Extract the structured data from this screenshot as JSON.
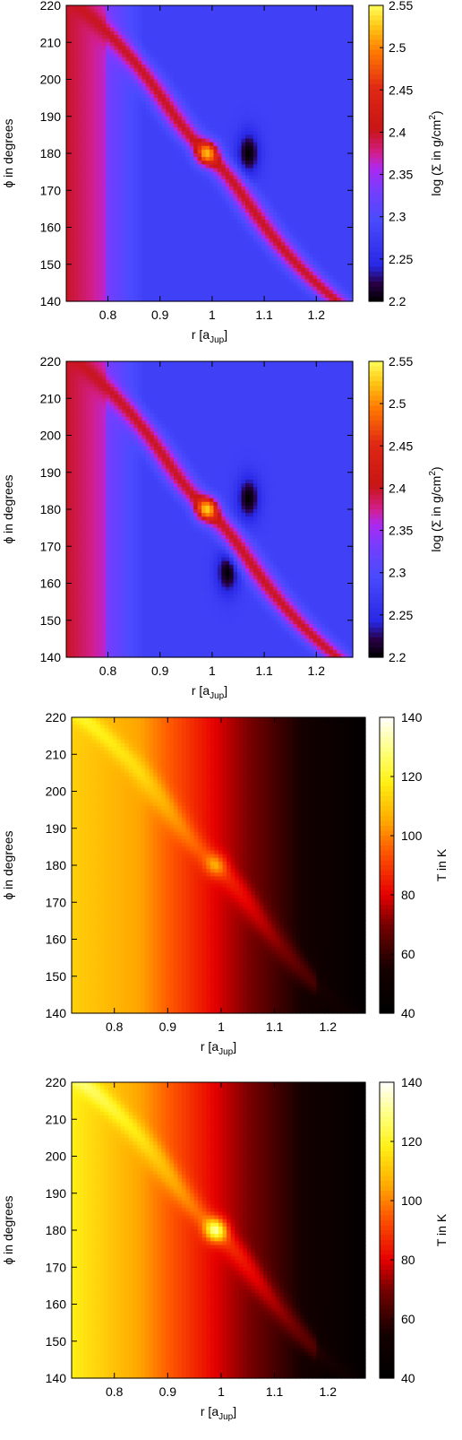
{
  "chart_data": [
    {
      "type": "heatmap",
      "panel": "density-1",
      "xlabel": "r [a",
      "xlabel_sub": "Jup",
      "xlabel_tail": "]",
      "ylabel": "ϕ in degrees",
      "cblabel": "log (Σ in g/cm",
      "cblabel_sup": "2",
      "cblabel_tail": ")",
      "xlim": [
        0.72,
        1.27
      ],
      "ylim": [
        140,
        220
      ],
      "xticks": [
        0.8,
        0.9,
        1,
        1.1,
        1.2
      ],
      "xtick_labels": [
        "0.8",
        "0.9",
        "1",
        "1.1",
        "1.2"
      ],
      "yticks": [
        140,
        150,
        160,
        170,
        180,
        190,
        200,
        210,
        220
      ],
      "ytick_labels": [
        "140",
        "150",
        "160",
        "170",
        "180",
        "190",
        "200",
        "210",
        "220"
      ],
      "clim": [
        2.2,
        2.55
      ],
      "cbticks": [
        2.2,
        2.25,
        2.3,
        2.35,
        2.4,
        2.45,
        2.5,
        2.55
      ],
      "cbtick_labels": [
        "2.2",
        "2.25",
        "2.3",
        "2.35",
        "2.4",
        "2.45",
        "2.5",
        "2.55"
      ],
      "colormap": "density",
      "background": 2.28,
      "inner_edge_r": 0.8,
      "spiral_arm": {
        "value": 2.4,
        "peak_value": 2.52,
        "peak_r": 0.99,
        "peak_phi": 180
      },
      "dark_lobes": [
        {
          "r": 1.07,
          "phi": 180,
          "value": 2.2
        }
      ]
    },
    {
      "type": "heatmap",
      "panel": "density-2",
      "xlabel": "r [a",
      "xlabel_sub": "Jup",
      "xlabel_tail": "]",
      "ylabel": "ϕ in degrees",
      "cblabel": "log (Σ in g/cm",
      "cblabel_sup": "2",
      "cblabel_tail": ")",
      "xlim": [
        0.72,
        1.27
      ],
      "ylim": [
        140,
        220
      ],
      "xticks": [
        0.8,
        0.9,
        1,
        1.1,
        1.2
      ],
      "xtick_labels": [
        "0.8",
        "0.9",
        "1",
        "1.1",
        "1.2"
      ],
      "yticks": [
        140,
        150,
        160,
        170,
        180,
        190,
        200,
        210,
        220
      ],
      "ytick_labels": [
        "140",
        "150",
        "160",
        "170",
        "180",
        "190",
        "200",
        "210",
        "220"
      ],
      "clim": [
        2.2,
        2.55
      ],
      "cbticks": [
        2.2,
        2.25,
        2.3,
        2.35,
        2.4,
        2.45,
        2.5,
        2.55
      ],
      "cbtick_labels": [
        "2.2",
        "2.25",
        "2.3",
        "2.35",
        "2.4",
        "2.45",
        "2.5",
        "2.55"
      ],
      "colormap": "density",
      "background": 2.28,
      "inner_edge_r": 0.8,
      "spiral_arm": {
        "value": 2.4,
        "peak_value": 2.53,
        "peak_r": 0.99,
        "peak_phi": 180
      },
      "dark_lobes": [
        {
          "r": 1.07,
          "phi": 183,
          "value": 2.2
        },
        {
          "r": 1.03,
          "phi": 163,
          "value": 2.2
        }
      ]
    },
    {
      "type": "heatmap",
      "panel": "temperature-1",
      "xlabel": "r [a",
      "xlabel_sub": "Jup",
      "xlabel_tail": "]",
      "ylabel": "ϕ in degrees",
      "cblabel": "T in K",
      "xlim": [
        0.72,
        1.27
      ],
      "ylim": [
        140,
        220
      ],
      "xticks": [
        0.8,
        0.9,
        1,
        1.1,
        1.2
      ],
      "xtick_labels": [
        "0.8",
        "0.9",
        "1",
        "1.1",
        "1.2"
      ],
      "yticks": [
        140,
        150,
        160,
        170,
        180,
        190,
        200,
        210,
        220
      ],
      "ytick_labels": [
        "140",
        "150",
        "160",
        "170",
        "180",
        "190",
        "200",
        "210",
        "220"
      ],
      "clim": [
        40,
        140
      ],
      "cbticks": [
        40,
        60,
        80,
        100,
        120,
        140
      ],
      "cbtick_labels": [
        "40",
        "60",
        "80",
        "100",
        "120",
        "140"
      ],
      "colormap": "temperature",
      "radial_profile": {
        "r": [
          0.72,
          0.85,
          1.0,
          1.15,
          1.27
        ],
        "T": [
          112,
          104,
          78,
          55,
          42
        ]
      },
      "spiral_arm": {
        "boost": 10,
        "peak_boost": 16,
        "peak_r": 0.99,
        "peak_phi": 180
      }
    },
    {
      "type": "heatmap",
      "panel": "temperature-2",
      "xlabel": "r [a",
      "xlabel_sub": "Jup",
      "xlabel_tail": "]",
      "ylabel": "ϕ in degrees",
      "cblabel": "T in K",
      "xlim": [
        0.72,
        1.27
      ],
      "ylim": [
        140,
        220
      ],
      "xticks": [
        0.8,
        0.9,
        1,
        1.1,
        1.2
      ],
      "xtick_labels": [
        "0.8",
        "0.9",
        "1",
        "1.1",
        "1.2"
      ],
      "yticks": [
        140,
        150,
        160,
        170,
        180,
        190,
        200,
        210,
        220
      ],
      "ytick_labels": [
        "140",
        "150",
        "160",
        "170",
        "180",
        "190",
        "200",
        "210",
        "220"
      ],
      "clim": [
        40,
        140
      ],
      "cbticks": [
        40,
        60,
        80,
        100,
        120,
        140
      ],
      "cbtick_labels": [
        "40",
        "60",
        "80",
        "100",
        "120",
        "140"
      ],
      "colormap": "temperature",
      "radial_profile": {
        "r": [
          0.72,
          0.85,
          1.0,
          1.15,
          1.27
        ],
        "T": [
          118,
          104,
          78,
          55,
          42
        ]
      },
      "spiral_arm": {
        "boost": 12,
        "peak_boost": 40,
        "peak_r": 0.99,
        "peak_phi": 180
      }
    }
  ]
}
